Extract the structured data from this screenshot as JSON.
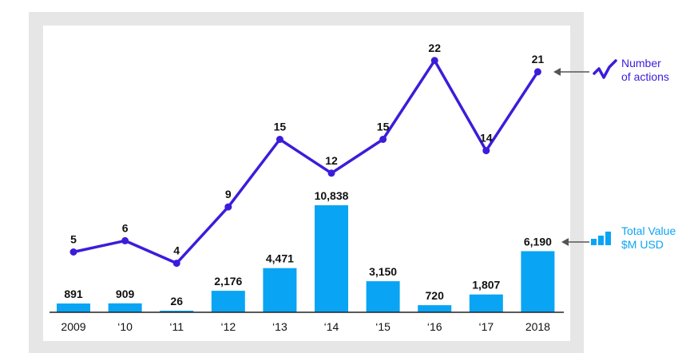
{
  "chart_data": {
    "type": "bar+line",
    "categories": [
      "2009",
      "‘10",
      "‘11",
      "‘12",
      "‘13",
      "‘14",
      "‘15",
      "‘16",
      "‘17",
      "2018"
    ],
    "series": [
      {
        "name": "Total Value $M USD",
        "type": "bar",
        "values": [
          891,
          909,
          26,
          2176,
          4471,
          10838,
          3150,
          720,
          1807,
          6190
        ],
        "value_labels": [
          "891",
          "909",
          "26",
          "2,176",
          "4,471",
          "10,838",
          "3,150",
          "720",
          "1,807",
          "6,190"
        ],
        "color": "#0aa4f4"
      },
      {
        "name": "Number of actions",
        "type": "line",
        "values": [
          5,
          6,
          4,
          9,
          15,
          12,
          15,
          22,
          14,
          21
        ],
        "color": "#3a1ddb"
      }
    ],
    "legend": {
      "line": {
        "line1": "Number",
        "line2": "of actions",
        "color": "#3a1ddb",
        "icon": "zigzag-line-icon"
      },
      "bar": {
        "line1": "Total Value",
        "line2": "$M USD",
        "color": "#0aa4f4",
        "icon": "bar-chart-icon"
      }
    },
    "grid": false,
    "axis_color": "#222222"
  }
}
